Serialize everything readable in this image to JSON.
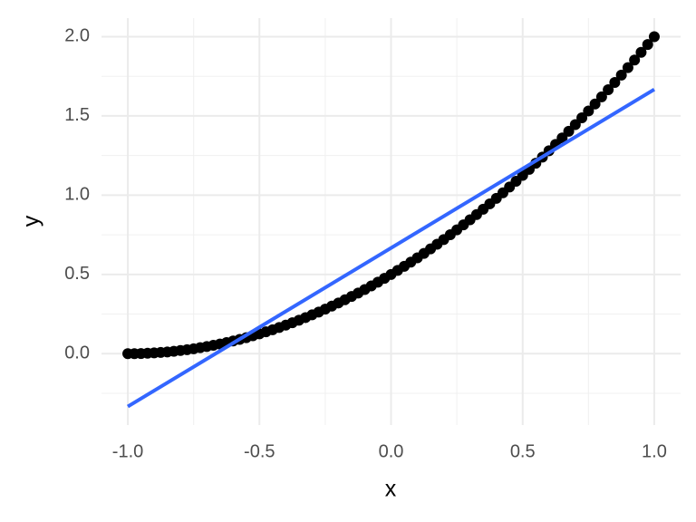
{
  "chart_data": {
    "type": "scatter",
    "x_label": "x",
    "y_label": "y",
    "xlim": [
      -1.1,
      1.1
    ],
    "ylim": [
      -0.45,
      2.117
    ],
    "xticks": [
      {
        "value": -1,
        "label": "-1.0"
      },
      {
        "value": -0.5,
        "label": "-0.5"
      },
      {
        "value": 0,
        "label": "0.0"
      },
      {
        "value": 0.5,
        "label": "0.5"
      },
      {
        "value": 1,
        "label": "1.0"
      }
    ],
    "yticks": [
      {
        "value": 0,
        "label": "0.0"
      },
      {
        "value": 0.5,
        "label": "0.5"
      },
      {
        "value": 1,
        "label": "1.0"
      },
      {
        "value": 1.5,
        "label": "1.5"
      },
      {
        "value": 2,
        "label": "2.0"
      }
    ],
    "x_minor_ticks": [
      -0.75,
      -0.25,
      0.25,
      0.75
    ],
    "y_minor_ticks": [
      -0.25,
      0.25,
      0.75,
      1.25,
      1.75
    ],
    "grid": true,
    "series": [
      {
        "type": "scatter",
        "color": "#000000",
        "x": [
          -1,
          -0.975,
          -0.95,
          -0.925,
          -0.9,
          -0.875,
          -0.85,
          -0.825,
          -0.8,
          -0.775,
          -0.75,
          -0.725,
          -0.7,
          -0.675,
          -0.65,
          -0.625,
          -0.6,
          -0.575,
          -0.55,
          -0.525,
          -0.5,
          -0.475,
          -0.45,
          -0.425,
          -0.4,
          -0.375,
          -0.35,
          -0.325,
          -0.3,
          -0.275,
          -0.25,
          -0.225,
          -0.2,
          -0.175,
          -0.15,
          -0.125,
          -0.1,
          -0.075,
          -0.05,
          -0.025,
          0,
          0.025,
          0.05,
          0.075,
          0.1,
          0.125,
          0.15,
          0.175,
          0.2,
          0.225,
          0.25,
          0.275,
          0.3,
          0.325,
          0.35,
          0.375,
          0.4,
          0.425,
          0.45,
          0.475,
          0.5,
          0.525,
          0.55,
          0.575,
          0.6,
          0.625,
          0.65,
          0.675,
          0.7,
          0.725,
          0.75,
          0.775,
          0.8,
          0.825,
          0.85,
          0.875,
          0.9,
          0.925,
          0.95,
          0.975,
          1
        ],
        "values": [
          0,
          0.0003125,
          0.00125,
          0.0028125,
          0.005,
          0.0078125,
          0.01125,
          0.0153125,
          0.02,
          0.0253125,
          0.03125,
          0.0378125,
          0.045,
          0.0528125,
          0.06125,
          0.0703125,
          0.08,
          0.0903125,
          0.10125,
          0.1128125,
          0.125,
          0.1378125,
          0.15125,
          0.1653125,
          0.18,
          0.1953125,
          0.21125,
          0.2278125,
          0.245,
          0.2628125,
          0.28125,
          0.3003125,
          0.32,
          0.3403125,
          0.36125,
          0.3828125,
          0.405,
          0.4278125,
          0.45125,
          0.4753125,
          0.5,
          0.5253125,
          0.55125,
          0.5778125,
          0.605,
          0.6328125,
          0.66125,
          0.6903125,
          0.72,
          0.7503125,
          0.78125,
          0.8128125,
          0.845,
          0.8778125,
          0.91125,
          0.9453125,
          0.98,
          1.0153125,
          1.05125,
          1.0878125,
          1.125,
          1.1628125,
          1.20125,
          1.2403125,
          1.28,
          1.3203125,
          1.36125,
          1.4028125,
          1.445,
          1.4878125,
          1.53125,
          1.5753125,
          1.62,
          1.6653125,
          1.71125,
          1.7578125,
          1.805,
          1.8528125,
          1.90125,
          1.9503125,
          2
        ]
      },
      {
        "type": "line",
        "color": "#3366FF",
        "x": [
          -1,
          1
        ],
        "values": [
          -0.333,
          1.667
        ]
      }
    ]
  }
}
